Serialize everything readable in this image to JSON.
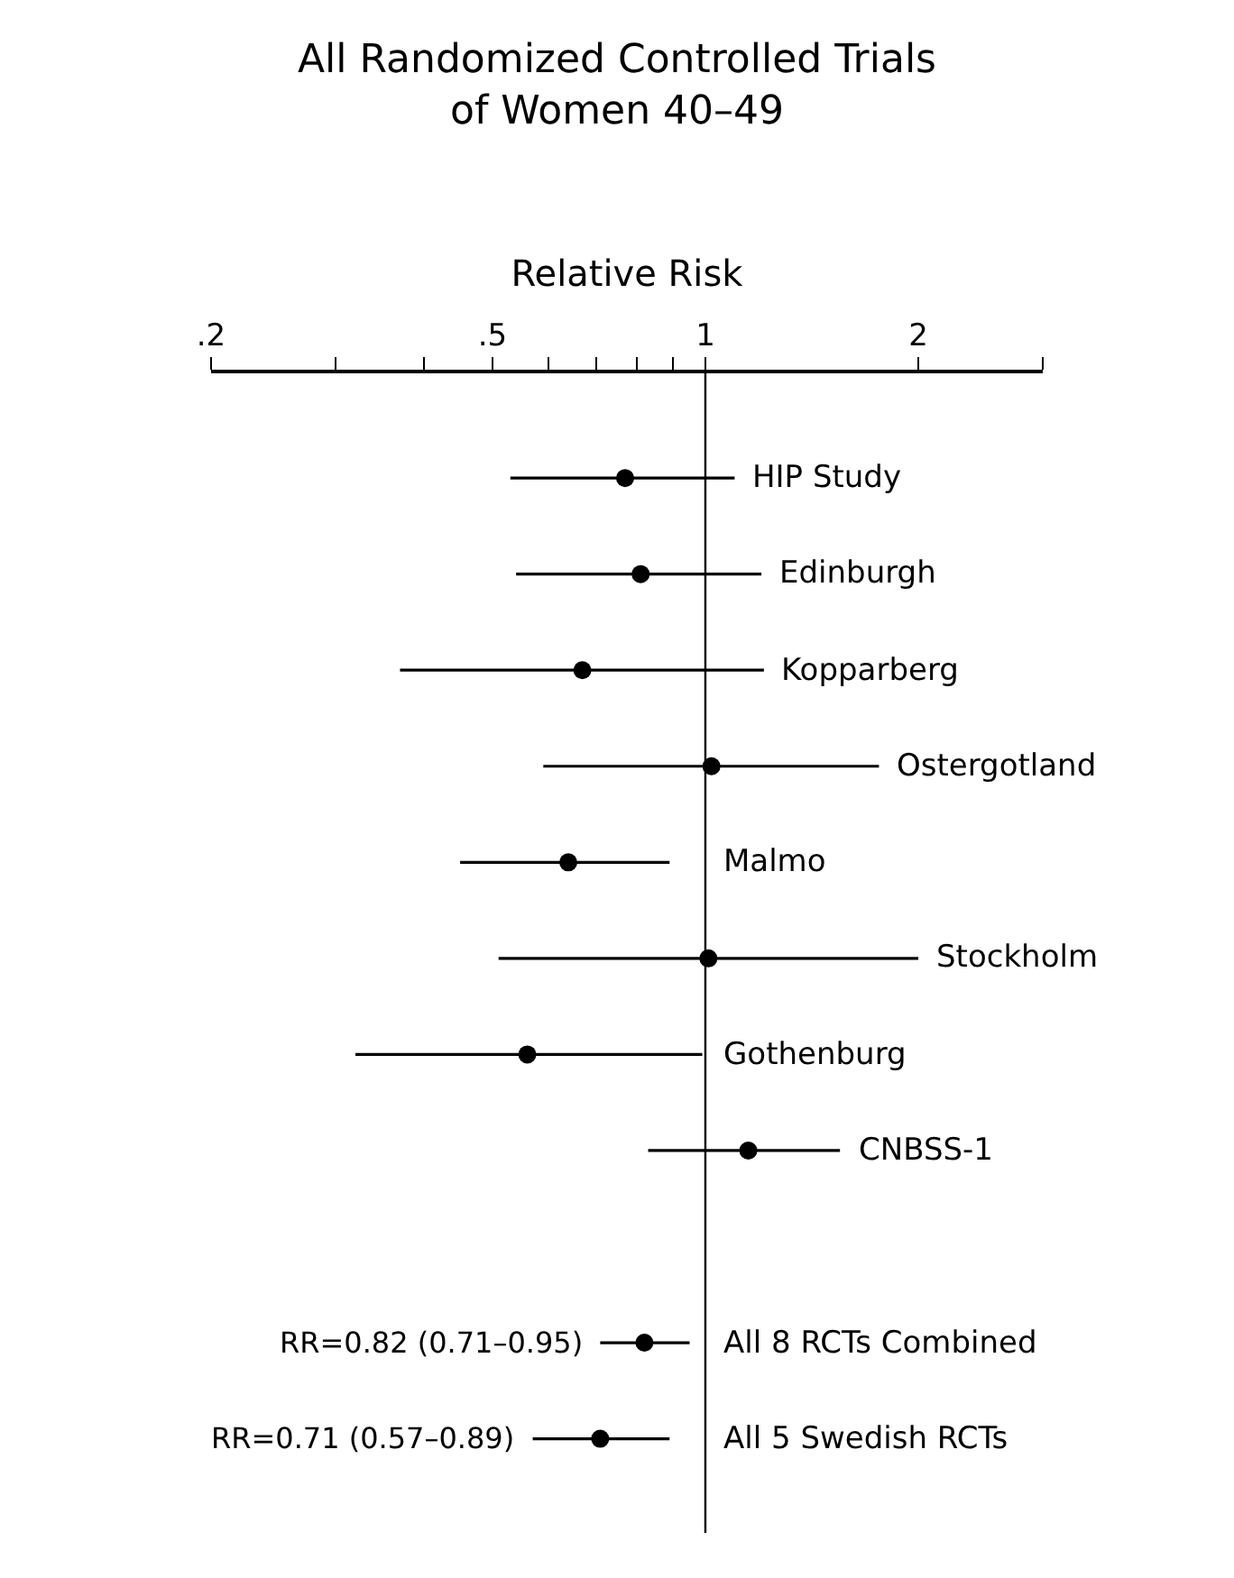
{
  "chart_data": {
    "type": "scatter",
    "orientation": "horizontal",
    "title": "All Randomized Controlled Trials\nof Women 40–49",
    "xlabel": "Relative Risk",
    "categories": [
      "HIP Study",
      "Edinburgh",
      "Kopparberg",
      "Ostergotland",
      "Malmo",
      "Stockholm",
      "Gothenburg",
      "CNBSS-1",
      null,
      "All 8 RCTs Combined",
      "All 5 Swedish RCTs"
    ],
    "values": [
      0.77,
      0.81,
      0.67,
      1.02,
      0.64,
      1.01,
      0.56,
      1.15,
      null,
      0.82,
      0.71
    ],
    "errors": [
      [
        0.53,
        1.1
      ],
      [
        0.54,
        1.2
      ],
      [
        0.37,
        1.21
      ],
      [
        0.59,
        1.76
      ],
      [
        0.45,
        0.89
      ],
      [
        0.51,
        2.0
      ],
      [
        0.32,
        0.99
      ],
      [
        0.83,
        1.55
      ],
      null,
      [
        0.71,
        0.95
      ],
      [
        0.57,
        0.89
      ]
    ],
    "color": "#000000",
    "marker": "circle",
    "log": "x",
    "xlim": [
      0.2,
      3
    ],
    "xticks": [
      {
        "value": 0.2,
        "label": ".2"
      },
      {
        "value": 0.3,
        "label": null
      },
      {
        "value": 0.4,
        "label": null
      },
      {
        "value": 0.5,
        "label": ".5"
      },
      {
        "value": 0.6,
        "label": null
      },
      {
        "value": 0.7,
        "label": null
      },
      {
        "value": 0.8,
        "label": null
      },
      {
        "value": 0.9,
        "label": null
      },
      1,
      2,
      {
        "value": 3,
        "label": null
      }
    ],
    "tick_labels": "x",
    "grid": false,
    "legend": false,
    "ref_lines": [
      {
        "axis": "x",
        "value": 1
      }
    ],
    "annotations": [
      "RR=0.82 (0.71–0.95)",
      "RR=0.71 (0.57–0.89)"
    ]
  }
}
